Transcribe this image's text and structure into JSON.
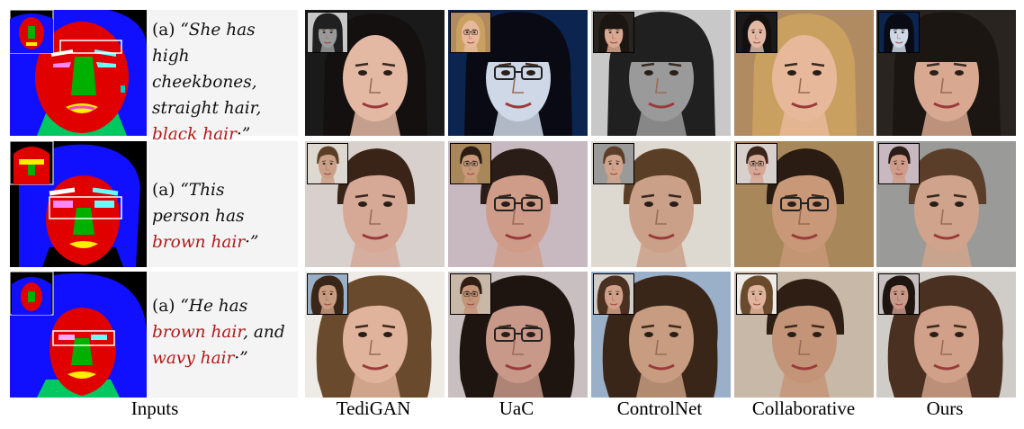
{
  "columns": [
    "Inputs",
    "TediGAN",
    "UaC",
    "ControlNet",
    "Collaborative",
    "Ours"
  ],
  "rows": [
    {
      "label": "(a)",
      "parts": [
        {
          "text": " “She has high cheekbones, straight hair, ",
          "hl": false
        },
        {
          "text": "black hair",
          "hl": true
        },
        {
          "text": "·”",
          "hl": false
        }
      ]
    },
    {
      "label": "(a)",
      "parts": [
        {
          "text": " “This person has ",
          "hl": false
        },
        {
          "text": "brown hair",
          "hl": true
        },
        {
          "text": "·”",
          "hl": false
        }
      ]
    },
    {
      "label": "(a)",
      "parts": [
        {
          "text": " “He has ",
          "hl": false
        },
        {
          "text": "brown hair",
          "hl": true
        },
        {
          "text": ", and ",
          "hl": false
        },
        {
          "text": "wavy hair",
          "hl": true
        },
        {
          "text": "·”",
          "hl": false
        }
      ]
    }
  ],
  "colors": {
    "highlight": "#b21a1a",
    "mask_bg": "#0000ff",
    "mask_face": "#e60000",
    "mask_nose": "#00b000",
    "mask_neck": "#00cc66"
  }
}
